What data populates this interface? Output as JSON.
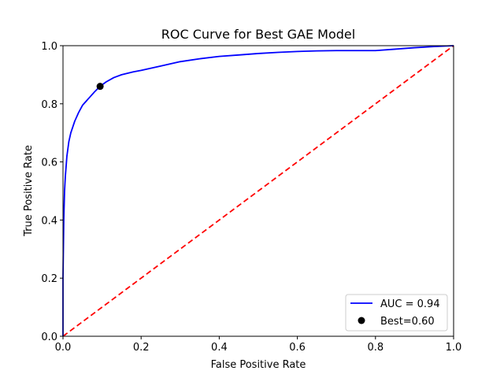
{
  "chart_data": {
    "type": "line",
    "title": "ROC Curve for Best GAE Model",
    "xlabel": "False Positive Rate",
    "ylabel": "True Positive Rate",
    "xlim": [
      0,
      1
    ],
    "ylim": [
      0,
      1
    ],
    "x_ticks": [
      "0.0",
      "0.2",
      "0.4",
      "0.6",
      "0.8",
      "1.0"
    ],
    "y_ticks": [
      "0.0",
      "0.2",
      "0.4",
      "0.6",
      "0.8",
      "1.0"
    ],
    "grid": false,
    "legend_position": "lower-right",
    "series": [
      {
        "name": "AUC = 0.94",
        "style": "solid",
        "color": "#0000ff",
        "x": [
          0.0,
          0.0,
          0.002,
          0.004,
          0.006,
          0.01,
          0.015,
          0.02,
          0.03,
          0.04,
          0.05,
          0.06,
          0.07,
          0.08,
          0.095,
          0.11,
          0.13,
          0.15,
          0.18,
          0.2,
          0.25,
          0.3,
          0.35,
          0.4,
          0.45,
          0.5,
          0.55,
          0.6,
          0.65,
          0.7,
          0.75,
          0.8,
          0.85,
          0.9,
          0.95,
          1.0
        ],
        "y": [
          0.0,
          0.2,
          0.4,
          0.5,
          0.55,
          0.62,
          0.67,
          0.7,
          0.74,
          0.77,
          0.795,
          0.81,
          0.825,
          0.84,
          0.86,
          0.875,
          0.89,
          0.9,
          0.91,
          0.915,
          0.93,
          0.945,
          0.955,
          0.963,
          0.968,
          0.973,
          0.977,
          0.98,
          0.982,
          0.983,
          0.983,
          0.983,
          0.988,
          0.993,
          0.997,
          1.0
        ]
      },
      {
        "name": "",
        "style": "dashed",
        "color": "#ff0000",
        "x": [
          0,
          1
        ],
        "y": [
          0,
          1
        ]
      }
    ],
    "points": [
      {
        "name": "Best=0.60",
        "x": 0.095,
        "y": 0.86,
        "color": "#000000"
      }
    ]
  }
}
